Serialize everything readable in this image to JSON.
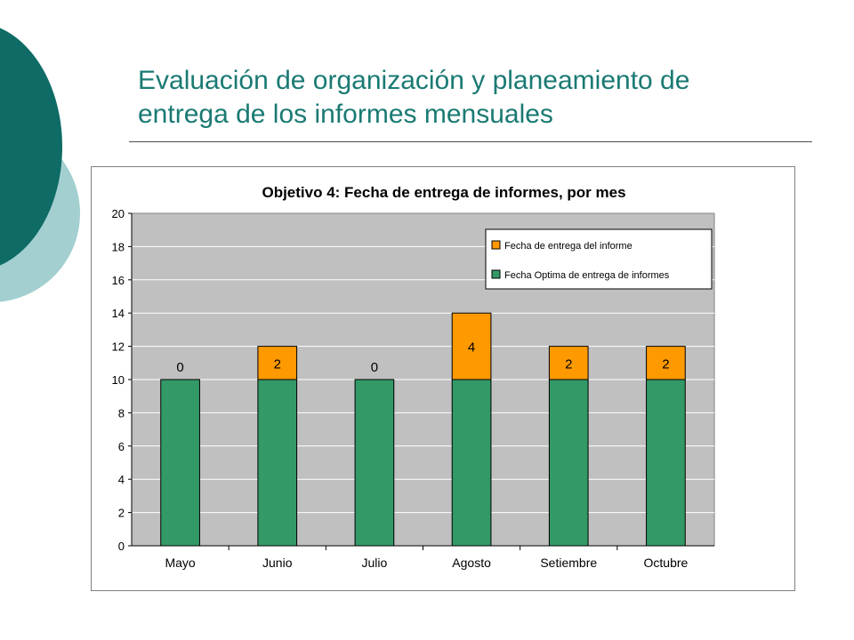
{
  "slide": {
    "title_line1": "Evaluación de organización y planeamiento de",
    "title_line2": "entrega de los informes mensuales"
  },
  "colors": {
    "title_teal": "#1a7a73",
    "deco_dark": "#0e6b66",
    "deco_light": "#a3cfd0",
    "plot_bg": "#c0c0c0",
    "series_base": "#339966",
    "series_delay": "#ff9900"
  },
  "chart_data": {
    "type": "bar",
    "stacked": true,
    "title": "Objetivo 4: Fecha de entrega de informes, por mes",
    "categories": [
      "Mayo",
      "Junio",
      "Julio",
      "Agosto",
      "Setiembre",
      "Octubre"
    ],
    "series": [
      {
        "name": "Fecha Optima de entrega de informes",
        "values": [
          10,
          10,
          10,
          10,
          10,
          10
        ],
        "color": "#339966",
        "labels": false
      },
      {
        "name": "Fecha de entrega del informe",
        "values": [
          0,
          2,
          0,
          4,
          2,
          2
        ],
        "color": "#ff9900",
        "labels": true
      }
    ],
    "legend_order": [
      "Fecha de entrega del informe",
      "Fecha Optima de entrega de informes"
    ],
    "ylim": [
      0,
      20
    ],
    "yticks": [
      0,
      2,
      4,
      6,
      8,
      10,
      12,
      14,
      16,
      18,
      20
    ],
    "grid": true,
    "legend_position": "top-right"
  }
}
